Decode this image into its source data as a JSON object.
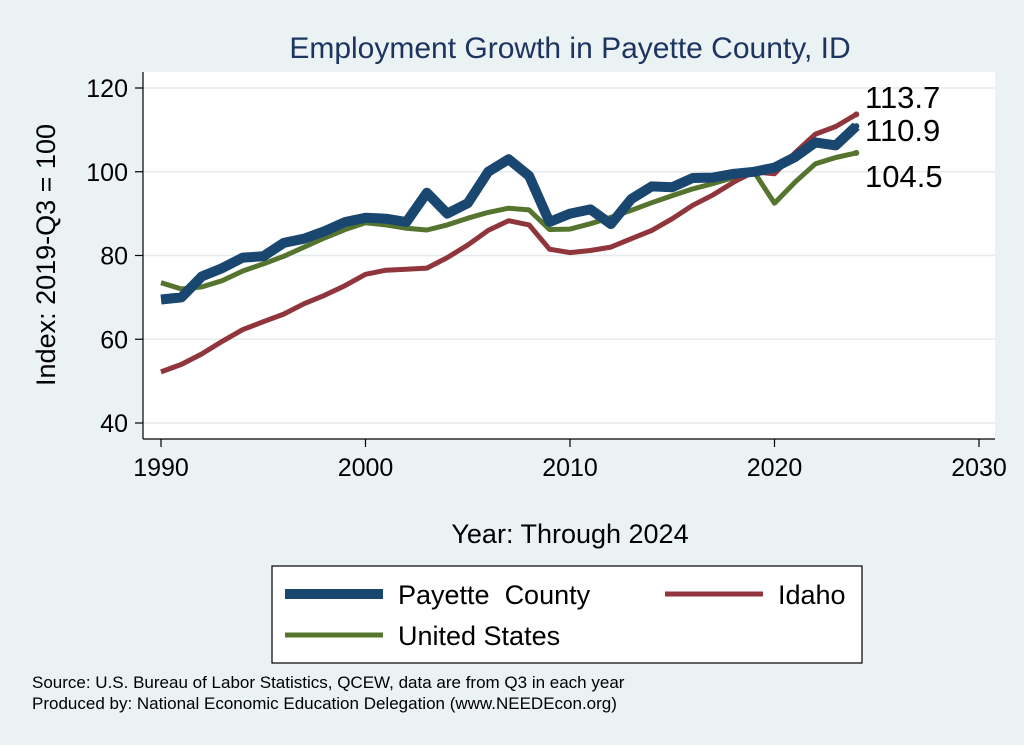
{
  "chart_data": {
    "type": "line",
    "title": "Employment Growth in Payette County, ID",
    "xlabel": "Year: Through 2024",
    "ylabel": "Index: 2019-Q3 = 100",
    "xlim": [
      1990,
      2030
    ],
    "ylim": [
      40,
      120
    ],
    "x_ticks": [
      1990,
      2000,
      2010,
      2020,
      2030
    ],
    "y_ticks": [
      40,
      60,
      80,
      100,
      120
    ],
    "grid": true,
    "legend_position": "bottom",
    "x": [
      1990,
      1991,
      1992,
      1993,
      1994,
      1995,
      1996,
      1997,
      1998,
      1999,
      2000,
      2001,
      2002,
      2003,
      2004,
      2005,
      2006,
      2007,
      2008,
      2009,
      2010,
      2011,
      2012,
      2013,
      2014,
      2015,
      2016,
      2017,
      2018,
      2019,
      2020,
      2021,
      2022,
      2023,
      2024
    ],
    "series": [
      {
        "name": "Payette  County",
        "color": "#1a476f",
        "end_label": "110.9",
        "values": [
          69.5,
          70,
          75,
          77,
          79.5,
          79.8,
          83,
          84,
          85.8,
          88,
          89,
          88.8,
          88,
          95,
          90,
          92.5,
          100,
          103,
          99,
          88,
          90,
          91,
          87.5,
          93.5,
          96.5,
          96.3,
          98.5,
          98.6,
          99.5,
          100,
          101,
          103.5,
          107,
          106.3,
          110.9
        ]
      },
      {
        "name": "Idaho",
        "color": "#90353b",
        "end_label": "113.7",
        "values": [
          52.2,
          54,
          56.5,
          59.5,
          62.3,
          64.2,
          66,
          68.5,
          70.5,
          72.8,
          75.5,
          76.5,
          76.7,
          77,
          79.5,
          82.5,
          86,
          88.3,
          87.3,
          81.5,
          80.7,
          81.2,
          82,
          84,
          86,
          88.8,
          92,
          94.5,
          97.5,
          100,
          99.5,
          104.5,
          109,
          110.8,
          113.7
        ]
      },
      {
        "name": "United States",
        "color": "#55752f",
        "end_label": "104.5",
        "values": [
          73.5,
          72,
          72.5,
          74,
          76.3,
          78,
          79.8,
          82,
          84.2,
          86.2,
          87.8,
          87.3,
          86.5,
          86.1,
          87.3,
          88.9,
          90.3,
          91.3,
          90.9,
          86.2,
          86.3,
          87.6,
          89.1,
          90.8,
          92.6,
          94.3,
          95.9,
          97.2,
          98.6,
          100,
          92.5,
          97.5,
          101.9,
          103.4,
          104.5
        ]
      }
    ],
    "source_lines": [
      "Source: U.S. Bureau of Labor Statistics, QCEW, data are from Q3 in each year",
      "Produced by: National Economic Education Delegation (www.NEEDEcon.org)"
    ]
  }
}
